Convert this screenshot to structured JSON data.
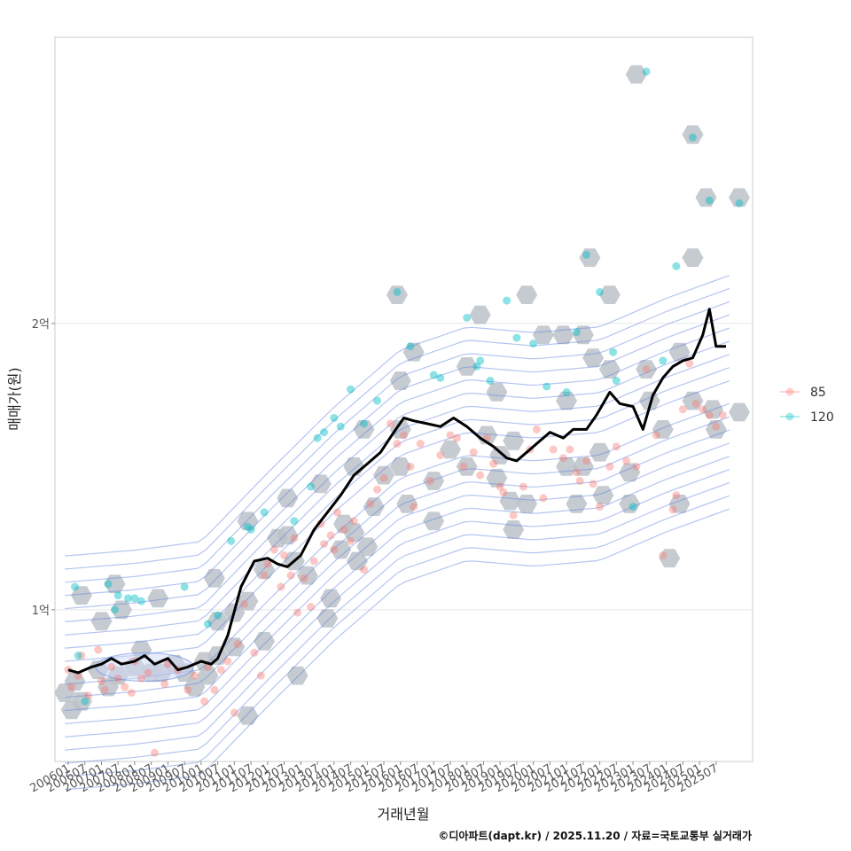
{
  "chart_data": {
    "type": "scatter",
    "xlabel": "거래년월",
    "ylabel": "매매가(원)",
    "caption": "©디아파트(dapt.kr) / 2025.11.20 / 자료=국토교통부 실거래가",
    "x_range": [
      2005.6,
      2026.6
    ],
    "ylim": [
      47000000,
      300000000
    ],
    "y_ticks": [
      {
        "value": 100000000,
        "label": "1억"
      },
      {
        "value": 200000000,
        "label": "2억"
      }
    ],
    "x_tick_labels": [
      "200601",
      "200607",
      "200701",
      "200707",
      "200801",
      "200807",
      "200901",
      "200907",
      "201001",
      "201007",
      "201101",
      "201107",
      "201201",
      "201207",
      "201301",
      "201307",
      "201401",
      "201407",
      "201501",
      "201507",
      "201601",
      "201607",
      "201701",
      "201707",
      "201801",
      "201807",
      "201901",
      "201907",
      "202001",
      "202007",
      "202101",
      "202107",
      "202201",
      "202207",
      "202301",
      "202307",
      "202401",
      "202407",
      "202501",
      "202507"
    ],
    "legend": {
      "position": "right",
      "entries": [
        {
          "label": "85",
          "color": "#F8766D"
        },
        {
          "label": "120",
          "color": "#00BFC4"
        }
      ]
    },
    "colors": {
      "hex": "#bcc2c9",
      "contour": "#5b7fe0",
      "trend": "#000000",
      "grid": "#e8e8e8",
      "panel_border": "#cccccc"
    },
    "trend_series": {
      "name": "median",
      "points": [
        [
          2006.0,
          79
        ],
        [
          2006.3,
          78
        ],
        [
          2006.7,
          80
        ],
        [
          2007.0,
          81
        ],
        [
          2007.3,
          83
        ],
        [
          2007.6,
          81
        ],
        [
          2008.0,
          82
        ],
        [
          2008.3,
          84
        ],
        [
          2008.6,
          81
        ],
        [
          2009.0,
          83
        ],
        [
          2009.3,
          79
        ],
        [
          2009.6,
          80
        ],
        [
          2010.0,
          82
        ],
        [
          2010.3,
          81
        ],
        [
          2010.5,
          83
        ],
        [
          2010.8,
          91
        ],
        [
          2011.2,
          108
        ],
        [
          2011.6,
          117
        ],
        [
          2012.0,
          118
        ],
        [
          2012.3,
          116
        ],
        [
          2012.6,
          115
        ],
        [
          2013.0,
          119
        ],
        [
          2013.4,
          128
        ],
        [
          2013.8,
          134
        ],
        [
          2014.2,
          140
        ],
        [
          2014.6,
          147
        ],
        [
          2015.0,
          151
        ],
        [
          2015.4,
          155
        ],
        [
          2015.8,
          162
        ],
        [
          2016.1,
          167
        ],
        [
          2016.4,
          166
        ],
        [
          2016.8,
          165
        ],
        [
          2017.2,
          164
        ],
        [
          2017.6,
          167
        ],
        [
          2018.0,
          164
        ],
        [
          2018.4,
          160
        ],
        [
          2018.8,
          157
        ],
        [
          2019.2,
          153
        ],
        [
          2019.5,
          152
        ],
        [
          2019.8,
          155
        ],
        [
          2020.2,
          159
        ],
        [
          2020.5,
          162
        ],
        [
          2020.9,
          160
        ],
        [
          2021.2,
          163
        ],
        [
          2021.6,
          163
        ],
        [
          2021.9,
          168
        ],
        [
          2022.3,
          176
        ],
        [
          2022.6,
          172
        ],
        [
          2023.0,
          171
        ],
        [
          2023.3,
          163
        ],
        [
          2023.6,
          175
        ],
        [
          2023.9,
          181
        ],
        [
          2024.2,
          185
        ],
        [
          2024.5,
          187
        ],
        [
          2024.8,
          188
        ],
        [
          2025.1,
          196
        ],
        [
          2025.3,
          205
        ],
        [
          2025.5,
          192
        ],
        [
          2025.8,
          192
        ]
      ]
    },
    "hexbins": [
      [
        2005.9,
        71
      ],
      [
        2006.2,
        75
      ],
      [
        2006.4,
        68
      ],
      [
        2006.1,
        65
      ],
      [
        2006.4,
        105
      ],
      [
        2006.9,
        79
      ],
      [
        2007.0,
        96
      ],
      [
        2007.2,
        73
      ],
      [
        2007.5,
        77
      ],
      [
        2007.4,
        109
      ],
      [
        2007.6,
        100
      ],
      [
        2008.0,
        80
      ],
      [
        2008.2,
        86
      ],
      [
        2008.5,
        78
      ],
      [
        2008.7,
        104
      ],
      [
        2008.8,
        78
      ],
      [
        2009.2,
        81
      ],
      [
        2009.5,
        78
      ],
      [
        2009.8,
        73
      ],
      [
        2010.1,
        82
      ],
      [
        2010.2,
        77
      ],
      [
        2010.4,
        111
      ],
      [
        2010.5,
        96
      ],
      [
        2010.5,
        84
      ],
      [
        2011.0,
        87
      ],
      [
        2011.0,
        99
      ],
      [
        2011.4,
        63
      ],
      [
        2011.4,
        131
      ],
      [
        2011.4,
        103
      ],
      [
        2011.9,
        89
      ],
      [
        2011.9,
        114
      ],
      [
        2012.3,
        125
      ],
      [
        2012.6,
        139
      ],
      [
        2012.6,
        126
      ],
      [
        2012.8,
        117
      ],
      [
        2012.9,
        77
      ],
      [
        2013.2,
        112
      ],
      [
        2013.6,
        144
      ],
      [
        2013.8,
        97
      ],
      [
        2013.9,
        104
      ],
      [
        2014.2,
        121
      ],
      [
        2014.3,
        130
      ],
      [
        2014.6,
        150
      ],
      [
        2014.6,
        127
      ],
      [
        2014.7,
        117
      ],
      [
        2014.9,
        163
      ],
      [
        2015.0,
        122
      ],
      [
        2015.2,
        136
      ],
      [
        2015.5,
        147
      ],
      [
        2015.9,
        210
      ],
      [
        2016.0,
        180
      ],
      [
        2016.0,
        163
      ],
      [
        2016.0,
        150
      ],
      [
        2016.2,
        137
      ],
      [
        2016.4,
        190
      ],
      [
        2017.0,
        145
      ],
      [
        2017.0,
        131
      ],
      [
        2017.5,
        156
      ],
      [
        2018.0,
        185
      ],
      [
        2018.0,
        150
      ],
      [
        2018.4,
        203
      ],
      [
        2018.6,
        161
      ],
      [
        2018.9,
        146
      ],
      [
        2018.9,
        176
      ],
      [
        2019.0,
        154
      ],
      [
        2019.3,
        138
      ],
      [
        2019.4,
        159
      ],
      [
        2019.4,
        128
      ],
      [
        2019.8,
        210
      ],
      [
        2019.8,
        137
      ],
      [
        2020.3,
        196
      ],
      [
        2020.9,
        196
      ],
      [
        2021.0,
        173
      ],
      [
        2021.0,
        150
      ],
      [
        2021.3,
        137
      ],
      [
        2021.5,
        150
      ],
      [
        2021.5,
        196
      ],
      [
        2021.7,
        223
      ],
      [
        2021.8,
        188
      ],
      [
        2022.0,
        155
      ],
      [
        2022.1,
        140
      ],
      [
        2022.3,
        184
      ],
      [
        2022.3,
        210
      ],
      [
        2022.9,
        148
      ],
      [
        2022.9,
        137
      ],
      [
        2023.1,
        287
      ],
      [
        2023.4,
        184
      ],
      [
        2023.5,
        173
      ],
      [
        2023.9,
        163
      ],
      [
        2024.1,
        118
      ],
      [
        2024.4,
        137
      ],
      [
        2024.4,
        190
      ],
      [
        2024.8,
        223
      ],
      [
        2024.8,
        266
      ],
      [
        2024.8,
        173
      ],
      [
        2025.2,
        244
      ],
      [
        2025.4,
        170
      ],
      [
        2025.5,
        163
      ],
      [
        2026.2,
        244
      ],
      [
        2026.2,
        169
      ]
    ],
    "points_85": [
      [
        2006.0,
        79
      ],
      [
        2006.1,
        73
      ],
      [
        2006.3,
        77
      ],
      [
        2006.4,
        84
      ],
      [
        2006.6,
        70
      ],
      [
        2006.9,
        86
      ],
      [
        2007.0,
        75
      ],
      [
        2007.1,
        72
      ],
      [
        2007.3,
        80
      ],
      [
        2007.5,
        76
      ],
      [
        2007.7,
        73
      ],
      [
        2007.9,
        71
      ],
      [
        2008.0,
        82
      ],
      [
        2008.2,
        76
      ],
      [
        2008.4,
        78
      ],
      [
        2008.6,
        50
      ],
      [
        2008.9,
        74
      ],
      [
        2009.0,
        81
      ],
      [
        2009.3,
        79
      ],
      [
        2009.6,
        72
      ],
      [
        2009.8,
        77
      ],
      [
        2010.1,
        68
      ],
      [
        2010.2,
        80
      ],
      [
        2010.4,
        72
      ],
      [
        2010.6,
        79
      ],
      [
        2010.8,
        82
      ],
      [
        2011.0,
        64
      ],
      [
        2011.1,
        88
      ],
      [
        2011.3,
        102
      ],
      [
        2011.6,
        85
      ],
      [
        2011.8,
        77
      ],
      [
        2011.9,
        112
      ],
      [
        2012.0,
        116
      ],
      [
        2012.2,
        121
      ],
      [
        2012.4,
        108
      ],
      [
        2012.5,
        119
      ],
      [
        2012.7,
        112
      ],
      [
        2012.8,
        125
      ],
      [
        2012.9,
        99
      ],
      [
        2013.1,
        111
      ],
      [
        2013.3,
        101
      ],
      [
        2013.4,
        117
      ],
      [
        2013.6,
        130
      ],
      [
        2013.7,
        123
      ],
      [
        2013.9,
        126
      ],
      [
        2014.0,
        121
      ],
      [
        2014.1,
        134
      ],
      [
        2014.3,
        128
      ],
      [
        2014.5,
        124
      ],
      [
        2014.6,
        131
      ],
      [
        2014.9,
        114
      ],
      [
        2015.1,
        137
      ],
      [
        2015.3,
        142
      ],
      [
        2015.5,
        146
      ],
      [
        2015.7,
        165
      ],
      [
        2015.9,
        158
      ],
      [
        2016.1,
        161
      ],
      [
        2016.3,
        150
      ],
      [
        2016.4,
        136
      ],
      [
        2016.6,
        158
      ],
      [
        2016.9,
        145
      ],
      [
        2017.2,
        154
      ],
      [
        2017.5,
        161
      ],
      [
        2017.7,
        160
      ],
      [
        2017.9,
        150
      ],
      [
        2018.2,
        155
      ],
      [
        2018.4,
        147
      ],
      [
        2018.6,
        160
      ],
      [
        2018.8,
        151
      ],
      [
        2019.0,
        143
      ],
      [
        2019.1,
        141
      ],
      [
        2019.4,
        133
      ],
      [
        2019.7,
        143
      ],
      [
        2019.9,
        156
      ],
      [
        2020.1,
        163
      ],
      [
        2020.3,
        139
      ],
      [
        2020.6,
        156
      ],
      [
        2020.9,
        153
      ],
      [
        2021.1,
        156
      ],
      [
        2021.3,
        148
      ],
      [
        2021.4,
        145
      ],
      [
        2021.6,
        152
      ],
      [
        2021.8,
        144
      ],
      [
        2022.0,
        136
      ],
      [
        2022.3,
        150
      ],
      [
        2022.5,
        157
      ],
      [
        2022.8,
        152
      ],
      [
        2023.1,
        150
      ],
      [
        2023.4,
        184
      ],
      [
        2023.7,
        161
      ],
      [
        2023.9,
        119
      ],
      [
        2024.2,
        135
      ],
      [
        2024.3,
        140
      ],
      [
        2024.5,
        170
      ],
      [
        2024.7,
        186
      ],
      [
        2024.9,
        172
      ],
      [
        2025.1,
        170
      ],
      [
        2025.3,
        168
      ],
      [
        2025.5,
        164
      ],
      [
        2025.7,
        168
      ]
    ],
    "points_120": [
      [
        2006.2,
        108
      ],
      [
        2006.3,
        84
      ],
      [
        2006.5,
        68
      ],
      [
        2007.2,
        109
      ],
      [
        2007.4,
        100
      ],
      [
        2007.5,
        105
      ],
      [
        2007.8,
        104
      ],
      [
        2008.0,
        104
      ],
      [
        2008.2,
        103
      ],
      [
        2009.5,
        108
      ],
      [
        2010.2,
        95
      ],
      [
        2010.5,
        98
      ],
      [
        2010.9,
        124
      ],
      [
        2011.4,
        129
      ],
      [
        2011.5,
        128
      ],
      [
        2011.9,
        134
      ],
      [
        2012.8,
        131
      ],
      [
        2013.3,
        143
      ],
      [
        2013.5,
        160
      ],
      [
        2013.7,
        162
      ],
      [
        2014.0,
        167
      ],
      [
        2014.2,
        164
      ],
      [
        2014.5,
        177
      ],
      [
        2014.9,
        165
      ],
      [
        2015.3,
        173
      ],
      [
        2015.9,
        211
      ],
      [
        2016.3,
        192
      ],
      [
        2017.0,
        182
      ],
      [
        2017.2,
        181
      ],
      [
        2018.0,
        202
      ],
      [
        2018.3,
        185
      ],
      [
        2018.4,
        187
      ],
      [
        2018.7,
        180
      ],
      [
        2019.2,
        208
      ],
      [
        2019.5,
        195
      ],
      [
        2020.0,
        193
      ],
      [
        2020.4,
        178
      ],
      [
        2021.0,
        176
      ],
      [
        2021.3,
        197
      ],
      [
        2021.6,
        224
      ],
      [
        2022.0,
        211
      ],
      [
        2022.4,
        190
      ],
      [
        2022.5,
        180
      ],
      [
        2023.0,
        136
      ],
      [
        2023.4,
        288
      ],
      [
        2023.9,
        187
      ],
      [
        2024.3,
        220
      ],
      [
        2024.8,
        265
      ],
      [
        2025.3,
        243
      ],
      [
        2026.2,
        242
      ]
    ],
    "contour_levels": 9
  }
}
